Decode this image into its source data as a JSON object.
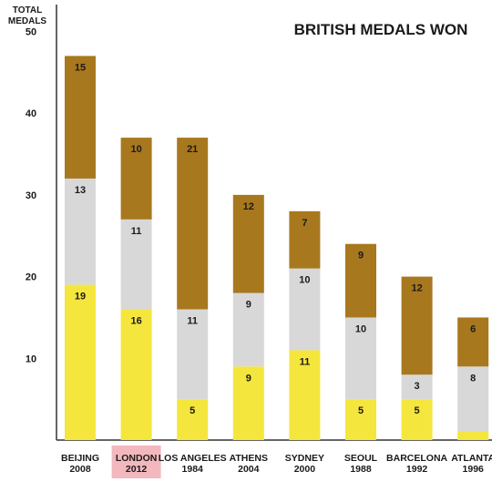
{
  "chart_data": {
    "type": "bar",
    "stacked": true,
    "title": "BRITISH MEDALS WON",
    "ylabel": [
      "TOTAL",
      "MEDALS"
    ],
    "ylim": [
      0,
      53
    ],
    "yticks": [
      10,
      20,
      30,
      40,
      50
    ],
    "grid": false,
    "highlighted_category": 1,
    "categories": [
      [
        "BEIJING",
        "2008"
      ],
      [
        "LONDON",
        "2012"
      ],
      [
        "LOS ANGELES",
        "1984"
      ],
      [
        "ATHENS",
        "2004"
      ],
      [
        "SYDNEY",
        "2000"
      ],
      [
        "SEOUL",
        "1988"
      ],
      [
        "BARCELONA",
        "1992"
      ],
      [
        "ATLANTA",
        "1996"
      ]
    ],
    "series": [
      {
        "color": "#f5e63d",
        "values": [
          19,
          16,
          5,
          9,
          11,
          5,
          5,
          1
        ]
      },
      {
        "color": "#d8d8d8",
        "values": [
          13,
          11,
          11,
          9,
          10,
          10,
          3,
          8
        ]
      },
      {
        "color": "#a8781e",
        "values": [
          15,
          10,
          21,
          12,
          7,
          9,
          12,
          6
        ]
      }
    ],
    "value_labels": [
      [
        "19",
        "16",
        "5",
        "9",
        "11",
        "5",
        "5",
        ""
      ],
      [
        "13",
        "11",
        "11",
        "9",
        "10",
        "10",
        "3",
        "8"
      ],
      [
        "15",
        "10",
        "21",
        "12",
        "7",
        "9",
        "12",
        "6"
      ]
    ],
    "highlight_color": "#f2b8bd",
    "axis_color": "#333333"
  }
}
